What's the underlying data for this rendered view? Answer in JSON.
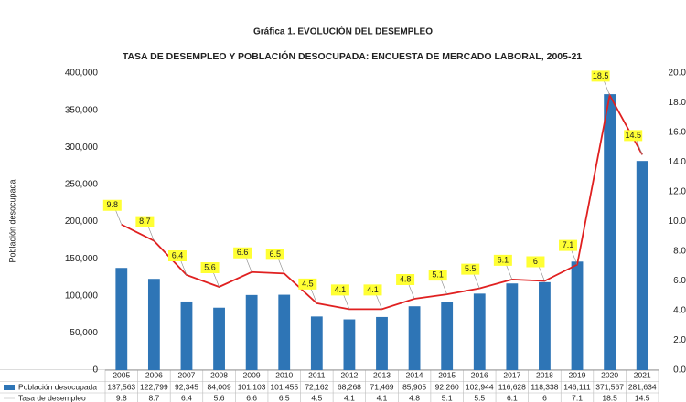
{
  "page_title": "Gráfica 1. EVOLUCIÓN DEL DESEMPLEO",
  "chart_data": {
    "type": "bar-line",
    "title": "TASA DE DESEMPLEO Y POBLACIÓN DESOCUPADA: ENCUESTA DE MERCADO LABORAL, 2005-21",
    "y_label": "Población desocupada",
    "categories": [
      "2005",
      "2006",
      "2007",
      "2008",
      "2009",
      "2010",
      "2011",
      "2012",
      "2013",
      "2014",
      "2015",
      "2016",
      "2017",
      "2018",
      "2019",
      "2020",
      "2021"
    ],
    "series": [
      {
        "name": "Población desocupada",
        "type": "bar",
        "color": "#2e75b6",
        "values": [
          137563,
          122799,
          92345,
          84009,
          101103,
          101455,
          72162,
          68268,
          71469,
          85905,
          92260,
          102944,
          116628,
          118338,
          146111,
          371567,
          281634
        ],
        "value_labels": [
          "137,563",
          "122,799",
          "92,345",
          "84,009",
          "101,103",
          "101,455",
          "72,162",
          "68,268",
          "71,469",
          "85,905",
          "92,260",
          "102,944",
          "116,628",
          "118,338",
          "146,111",
          "371,567",
          "281,634"
        ]
      },
      {
        "name": "Tasa de desempleo",
        "type": "line",
        "axis": "y2",
        "color": "#e02020",
        "values": [
          9.8,
          8.7,
          6.4,
          5.6,
          6.6,
          6.5,
          4.5,
          4.1,
          4.1,
          4.8,
          5.1,
          5.5,
          6.1,
          6,
          7.1,
          18.5,
          14.5
        ]
      }
    ],
    "ylim": [
      0,
      400000
    ],
    "yticks": [
      0,
      {
        "value": 50000,
        "label": "50,000"
      },
      {
        "value": 100000,
        "label": "100,000"
      },
      {
        "value": 150000,
        "label": "150,000"
      },
      {
        "value": 200000,
        "label": "200,000"
      },
      {
        "value": 250000,
        "label": "250,000"
      },
      {
        "value": 300000,
        "label": "300,000"
      },
      {
        "value": 350000,
        "label": "350,000"
      },
      {
        "value": 400000,
        "label": "400,000"
      }
    ],
    "y2lim": [
      0,
      20
    ],
    "y2ticks": [
      {
        "value": 0,
        "label": "0.0"
      },
      {
        "value": 2,
        "label": "2.0"
      },
      {
        "value": 4,
        "label": "4.0"
      },
      {
        "value": 6,
        "label": "6.0"
      },
      {
        "value": 8,
        "label": "8.0"
      },
      {
        "value": 10,
        "label": "10.0"
      },
      {
        "value": 12,
        "label": "12.0"
      },
      {
        "value": 14,
        "label": "14.0"
      },
      {
        "value": 16,
        "label": "16.0"
      },
      {
        "value": 18,
        "label": "18.0"
      },
      {
        "value": 20,
        "label": "20.0"
      }
    ],
    "grid": false
  }
}
